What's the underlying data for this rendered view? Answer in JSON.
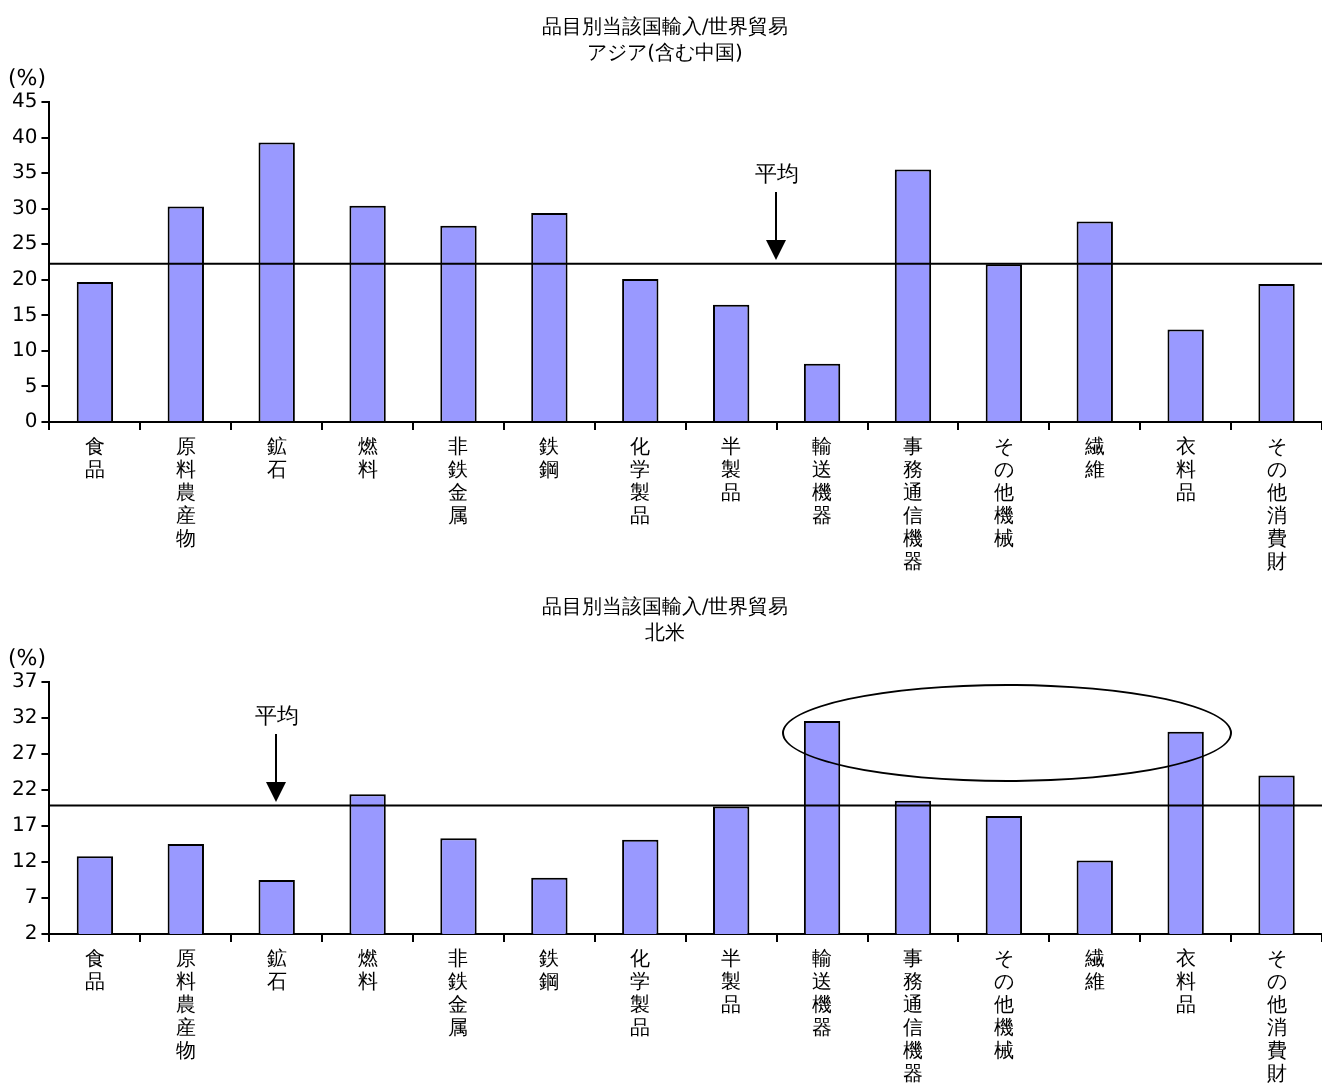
{
  "chart_data": [
    {
      "type": "bar",
      "title": "品目別当該国輸入/世界貿易",
      "subtitle": "アジア(含む中国)",
      "ylabel": "(%)",
      "categories": [
        "食品",
        "原料農産物",
        "鉱石",
        "燃料",
        "非鉄金属",
        "鉄鋼",
        "化学製品",
        "半製品",
        "輸送機器",
        "事務通信機器",
        "その他機械",
        "繊維",
        "衣料品",
        "その他消費財"
      ],
      "series": [
        {
          "color": "#9999ff",
          "values": [
            19.7,
            30.3,
            39.3,
            30.4,
            27.6,
            29.4,
            20.1,
            16.5,
            8.2,
            35.5,
            22.2,
            28.2,
            13.0,
            19.4
          ]
        }
      ],
      "ylim": [
        0,
        45
      ],
      "yticks": [
        0,
        5,
        10,
        15,
        20,
        25,
        30,
        35,
        40,
        45
      ],
      "grid": false,
      "legend": false,
      "ref_lines": [
        {
          "axis": "y",
          "value": 22.4,
          "label": "平均",
          "color": "#000000"
        }
      ]
    },
    {
      "type": "bar",
      "title": "品目別当該国輸入/世界貿易",
      "subtitle": "北米",
      "ylabel": "(%)",
      "categories": [
        "食品",
        "原料農産物",
        "鉱石",
        "燃料",
        "非鉄金属",
        "鉄鋼",
        "化学製品",
        "半製品",
        "輸送機器",
        "事務通信機器",
        "その他機械",
        "繊維",
        "衣料品",
        "その他消費財"
      ],
      "series": [
        {
          "color": "#9999ff",
          "values": [
            12.8,
            14.5,
            9.5,
            21.4,
            15.3,
            9.8,
            15.1,
            19.7,
            31.6,
            20.5,
            18.4,
            12.2,
            30.1,
            24.0
          ]
        }
      ],
      "ylim": [
        2,
        37
      ],
      "yticks": [
        2,
        7,
        12,
        17,
        22,
        27,
        32,
        37
      ],
      "grid": false,
      "legend": false,
      "ref_lines": [
        {
          "axis": "y",
          "value": 20.0,
          "label": "平均",
          "color": "#000000"
        }
      ]
    }
  ]
}
